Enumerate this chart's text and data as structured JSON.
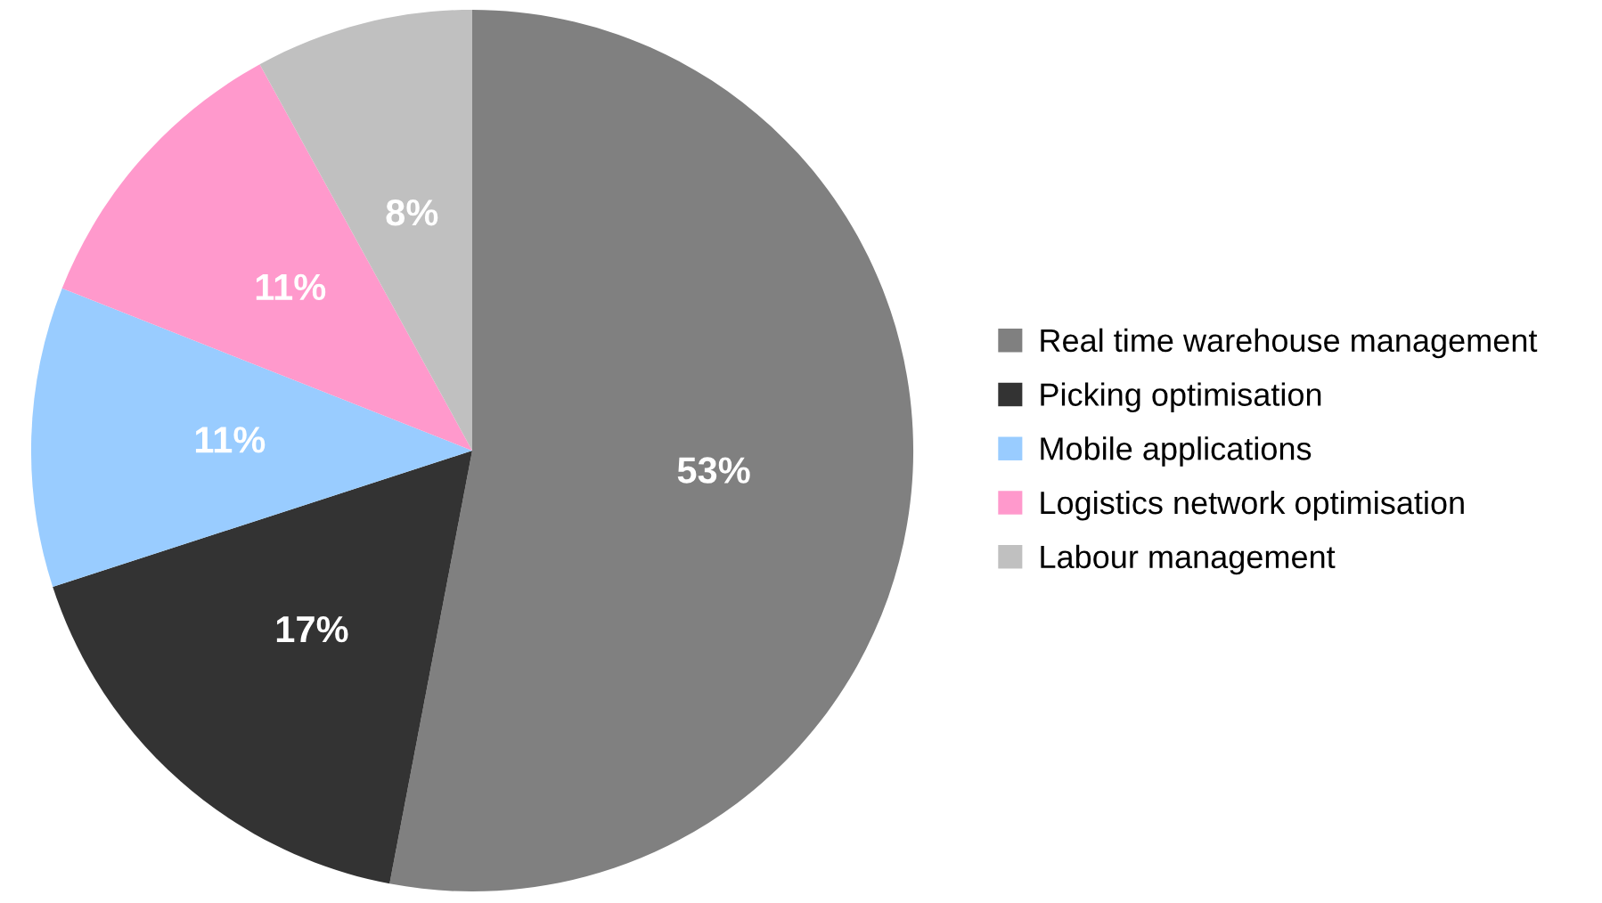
{
  "chart_data": {
    "type": "pie",
    "categories": [
      "Real time warehouse management",
      "Picking optimisation",
      "Mobile applications",
      "Logistics network optimisation",
      "Labour management"
    ],
    "values": [
      53,
      17,
      11,
      11,
      8
    ],
    "colors": [
      "#808080",
      "#333333",
      "#99ccff",
      "#ff99cc",
      "#c0c0c0"
    ],
    "value_labels": [
      "53%",
      "17%",
      "11%",
      "11%",
      "8%"
    ],
    "legend": "right"
  }
}
